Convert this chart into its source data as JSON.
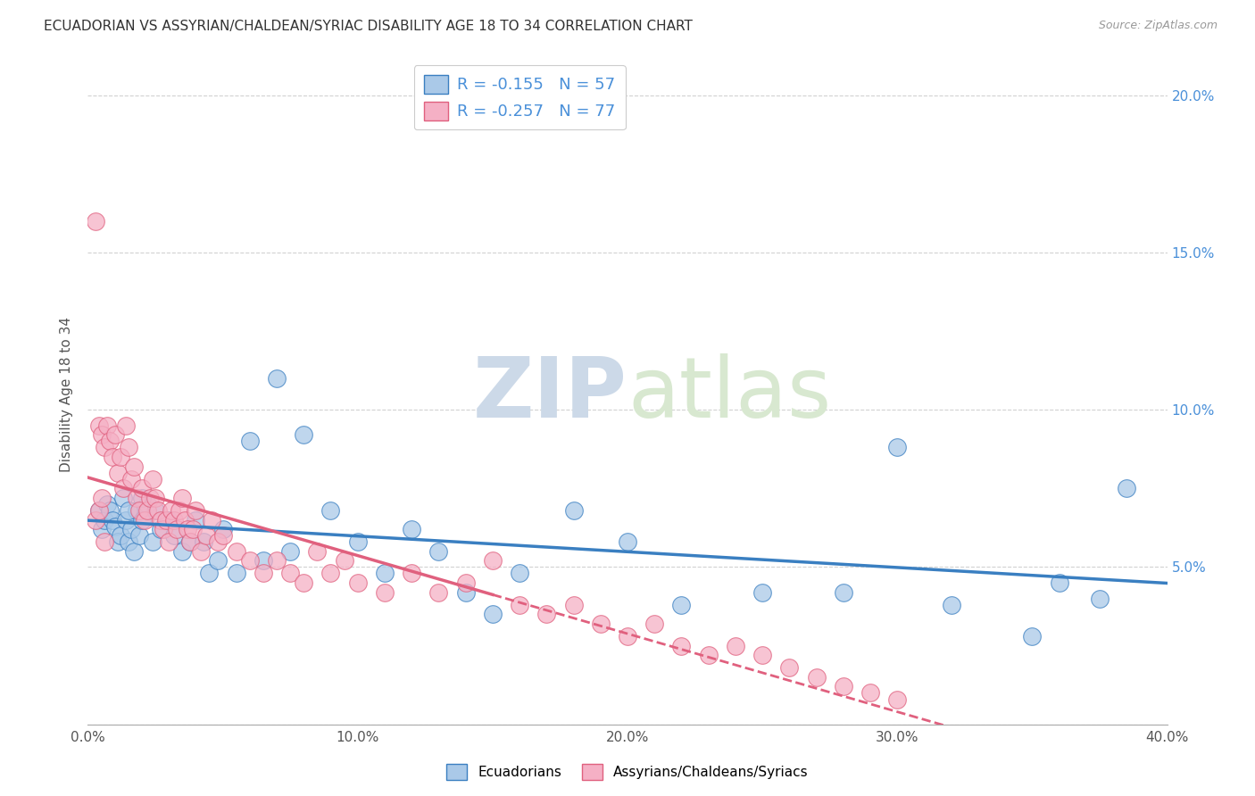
{
  "title": "ECUADORIAN VS ASSYRIAN/CHALDEAN/SYRIAC DISABILITY AGE 18 TO 34 CORRELATION CHART",
  "source": "Source: ZipAtlas.com",
  "ylabel": "Disability Age 18 to 34",
  "xlim": [
    0.0,
    0.4
  ],
  "ylim": [
    0.0,
    0.21
  ],
  "xticks": [
    0.0,
    0.1,
    0.2,
    0.3,
    0.4
  ],
  "xtick_labels": [
    "0.0%",
    "10.0%",
    "20.0%",
    "30.0%",
    "40.0%"
  ],
  "yticks_right": [
    0.05,
    0.1,
    0.15,
    0.2
  ],
  "yticks_right_labels": [
    "5.0%",
    "10.0%",
    "15.0%",
    "20.0%"
  ],
  "blue_R": -0.155,
  "blue_N": 57,
  "pink_R": -0.257,
  "pink_N": 77,
  "blue_dot_color": "#aac9e8",
  "pink_dot_color": "#f5b0c5",
  "blue_line_color": "#3a7fc1",
  "pink_line_color": "#e0607e",
  "right_axis_color": "#4a90d9",
  "legend_label_blue": "Ecuadorians",
  "legend_label_pink": "Assyrians/Chaldeans/Syriacs",
  "blue_x": [
    0.004,
    0.005,
    0.006,
    0.007,
    0.008,
    0.009,
    0.01,
    0.011,
    0.012,
    0.013,
    0.014,
    0.015,
    0.016,
    0.017,
    0.018,
    0.019,
    0.02,
    0.022,
    0.024,
    0.025,
    0.027,
    0.03,
    0.032,
    0.035,
    0.038,
    0.04,
    0.043,
    0.045,
    0.048,
    0.05,
    0.055,
    0.06,
    0.065,
    0.07,
    0.075,
    0.08,
    0.09,
    0.1,
    0.11,
    0.12,
    0.13,
    0.14,
    0.15,
    0.16,
    0.18,
    0.2,
    0.22,
    0.25,
    0.28,
    0.3,
    0.32,
    0.35,
    0.36,
    0.375,
    0.385,
    0.015,
    0.02
  ],
  "blue_y": [
    0.068,
    0.062,
    0.065,
    0.07,
    0.068,
    0.065,
    0.063,
    0.058,
    0.06,
    0.072,
    0.065,
    0.058,
    0.062,
    0.055,
    0.068,
    0.06,
    0.065,
    0.07,
    0.058,
    0.068,
    0.062,
    0.065,
    0.06,
    0.055,
    0.058,
    0.065,
    0.058,
    0.048,
    0.052,
    0.062,
    0.048,
    0.09,
    0.052,
    0.11,
    0.055,
    0.092,
    0.068,
    0.058,
    0.048,
    0.062,
    0.055,
    0.042,
    0.035,
    0.048,
    0.068,
    0.058,
    0.038,
    0.042,
    0.042,
    0.088,
    0.038,
    0.028,
    0.045,
    0.04,
    0.075,
    0.068,
    0.072
  ],
  "pink_x": [
    0.003,
    0.004,
    0.005,
    0.006,
    0.007,
    0.008,
    0.009,
    0.01,
    0.011,
    0.012,
    0.013,
    0.014,
    0.015,
    0.016,
    0.017,
    0.018,
    0.019,
    0.02,
    0.021,
    0.022,
    0.023,
    0.024,
    0.025,
    0.026,
    0.027,
    0.028,
    0.029,
    0.03,
    0.031,
    0.032,
    0.033,
    0.034,
    0.035,
    0.036,
    0.037,
    0.038,
    0.039,
    0.04,
    0.042,
    0.044,
    0.046,
    0.048,
    0.05,
    0.055,
    0.06,
    0.065,
    0.07,
    0.075,
    0.08,
    0.085,
    0.09,
    0.095,
    0.1,
    0.11,
    0.12,
    0.13,
    0.14,
    0.15,
    0.16,
    0.17,
    0.18,
    0.19,
    0.2,
    0.21,
    0.22,
    0.23,
    0.24,
    0.25,
    0.26,
    0.27,
    0.28,
    0.29,
    0.3,
    0.003,
    0.004,
    0.005,
    0.006
  ],
  "pink_y": [
    0.16,
    0.095,
    0.092,
    0.088,
    0.095,
    0.09,
    0.085,
    0.092,
    0.08,
    0.085,
    0.075,
    0.095,
    0.088,
    0.078,
    0.082,
    0.072,
    0.068,
    0.075,
    0.065,
    0.068,
    0.072,
    0.078,
    0.072,
    0.068,
    0.065,
    0.062,
    0.065,
    0.058,
    0.068,
    0.065,
    0.062,
    0.068,
    0.072,
    0.065,
    0.062,
    0.058,
    0.062,
    0.068,
    0.055,
    0.06,
    0.065,
    0.058,
    0.06,
    0.055,
    0.052,
    0.048,
    0.052,
    0.048,
    0.045,
    0.055,
    0.048,
    0.052,
    0.045,
    0.042,
    0.048,
    0.042,
    0.045,
    0.052,
    0.038,
    0.035,
    0.038,
    0.032,
    0.028,
    0.032,
    0.025,
    0.022,
    0.025,
    0.022,
    0.018,
    0.015,
    0.012,
    0.01,
    0.008,
    0.065,
    0.068,
    0.072,
    0.058
  ]
}
